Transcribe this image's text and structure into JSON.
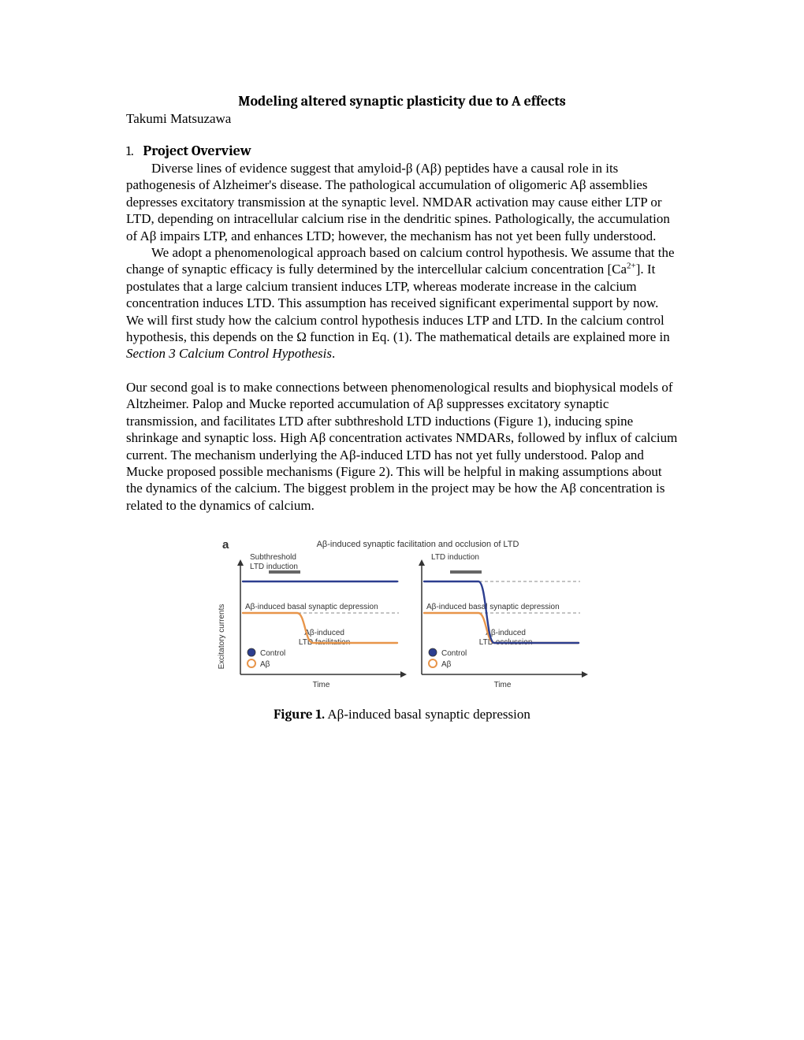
{
  "title": "Modeling altered synaptic plasticity due to A effects",
  "author": "Takumi Matsuzawa",
  "section": {
    "number": "1.",
    "name": "Project Overview"
  },
  "p1a": "Diverse lines of evidence suggest that amyloid-β (Aβ) peptides have a causal role in its pathogenesis of Alzheimer's disease. The pathological accumulation of oligomeric Aβ assemblies depresses excitatory transmission at the synaptic level. NMDAR activation may cause either LTP or LTD, depending on intracellular calcium rise in the dendritic spines. Pathologically, the accumulation of Aβ impairs LTP, and enhances LTD; however, the mechanism has not yet been fully understood.",
  "p1b_a": "We adopt a phenomenological approach based on calcium control hypothesis. We assume that the change of synaptic efficacy is fully determined by the intercellular calcium concentration [Ca",
  "p1b_sup": "2+",
  "p1b_b": "]. It postulates that a large calcium transient induces LTP, whereas moderate increase in the calcium concentration induces LTD. This assumption has received significant experimental support by now. We will first study how the calcium control hypothesis induces LTP and LTD. In the calcium control hypothesis, this depends on the Ω function in Eq. (1). The mathematical details are explained more in ",
  "p1b_c": "Section 3 Calcium Control Hypothesis",
  "p1b_d": ".",
  "p2": "Our second goal is to make connections between phenomenological results and biophysical models of Altzheimer. Palop and Mucke reported accumulation of Aβ suppresses excitatory synaptic transmission, and facilitates LTD after subthreshold LTD inductions (Figure 1), inducing spine shrinkage and synaptic loss. High Aβ concentration activates NMDARs, followed by influx of calcium current. The mechanism underlying the Aβ-induced LTD has not yet fully understood. Palop and Mucke proposed possible mechanisms (Figure 2). This will be helpful in making assumptions about the dynamics of the calcium. The biggest problem in the project may be how the Aβ concentration is related to the dynamics of calcium.",
  "figure": {
    "panel_label": "a",
    "title": "Aβ-induced synaptic facilitation and occlusion of LTD",
    "left": {
      "top_label": "Subthreshold\nLTD induction",
      "mid_label": "Aβ-induced basal synaptic depression",
      "center_label": "Aβ-induced\nLTD facilitation",
      "xaxis": "Time"
    },
    "right": {
      "top_label": "LTD induction",
      "mid_label": "Aβ-induced basal synaptic depression",
      "center_label": "Aβ-induced\nLTD occlussion",
      "xaxis": "Time"
    },
    "yaxis": "Excitatory currents",
    "legend": {
      "control": "Control",
      "ab": "Aβ"
    },
    "colors": {
      "control_line": "#2c3e8f",
      "ab_line": "#e8954a",
      "axis": "#333333",
      "dash": "#888888",
      "bar": "#666666",
      "panel_bg": "#ffffff",
      "text": "#333333"
    },
    "line_width": 2.4,
    "font_size_label": 10,
    "font_size_title": 11,
    "caption_bold": "Figure 1.",
    "caption_rest": " Aβ-induced basal synaptic depression"
  }
}
